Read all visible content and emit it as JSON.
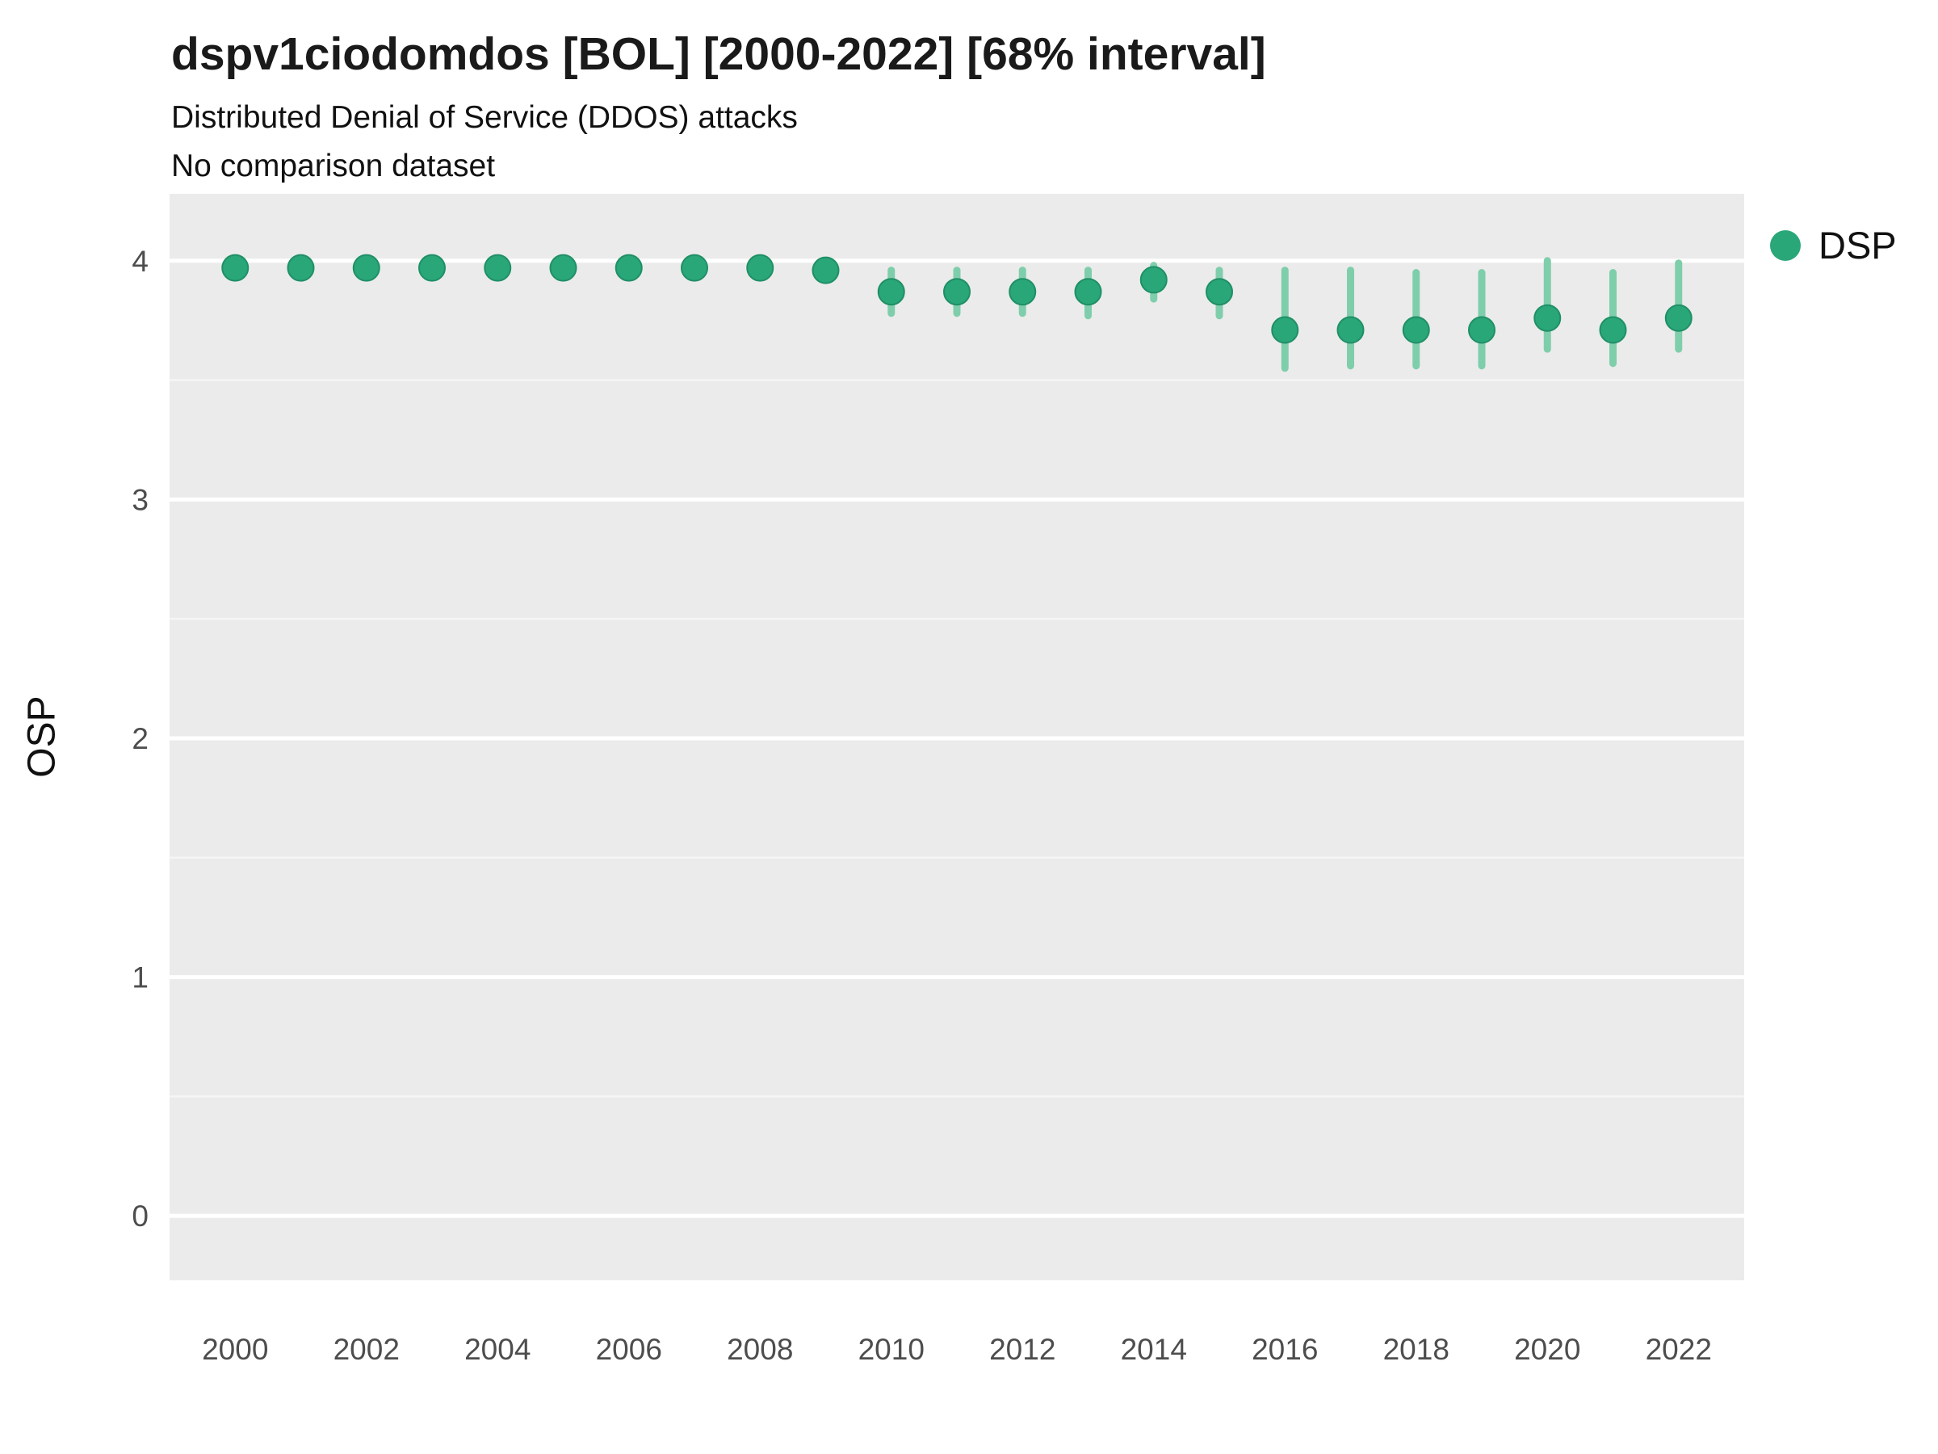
{
  "header": {
    "title": "dspv1ciodomdos [BOL] [2000-2022] [68% interval]",
    "subtitle_line1": "Distributed Denial of Service (DDOS) attacks",
    "subtitle_line2": "No comparison dataset"
  },
  "axes": {
    "y_label": "OSP"
  },
  "legend": {
    "label": "DSP"
  },
  "chart_data": {
    "type": "scatter",
    "title": "dspv1ciodomdos [BOL] [2000-2022] [68% interval]",
    "subtitle": "Distributed Denial of Service (DDOS) attacks",
    "note": "No comparison dataset",
    "xlabel": "",
    "ylabel": "OSP",
    "legend_position": "right",
    "grid": "horizontal-only",
    "x": [
      2000,
      2001,
      2002,
      2003,
      2004,
      2005,
      2006,
      2007,
      2008,
      2009,
      2010,
      2011,
      2012,
      2013,
      2014,
      2015,
      2016,
      2017,
      2018,
      2019,
      2020,
      2021,
      2022
    ],
    "series": [
      {
        "name": "DSP",
        "values": [
          3.97,
          3.97,
          3.97,
          3.97,
          3.97,
          3.97,
          3.97,
          3.97,
          3.97,
          3.96,
          3.87,
          3.87,
          3.87,
          3.87,
          3.92,
          3.87,
          3.71,
          3.71,
          3.71,
          3.71,
          3.76,
          3.71,
          3.76
        ],
        "lower": [
          3.94,
          3.94,
          3.94,
          3.94,
          3.94,
          3.94,
          3.94,
          3.94,
          3.94,
          3.93,
          3.78,
          3.78,
          3.78,
          3.77,
          3.84,
          3.77,
          3.55,
          3.56,
          3.56,
          3.56,
          3.63,
          3.57,
          3.63
        ],
        "upper": [
          3.99,
          3.99,
          3.99,
          3.99,
          3.99,
          3.99,
          3.99,
          3.99,
          3.99,
          3.99,
          3.96,
          3.96,
          3.96,
          3.96,
          3.98,
          3.96,
          3.96,
          3.96,
          3.95,
          3.95,
          4.0,
          3.95,
          3.99
        ],
        "interval": "68%"
      }
    ],
    "x_ticks": [
      "2000",
      "2002",
      "2004",
      "2006",
      "2008",
      "2010",
      "2012",
      "2014",
      "2016",
      "2018",
      "2020",
      "2022"
    ],
    "y_ticks": [
      "0",
      "1",
      "2",
      "3",
      "4"
    ],
    "y_minor_ticks": [
      0.5,
      1.5,
      2.5,
      3.5
    ],
    "xlim": [
      1999,
      2023
    ],
    "ylim": [
      -0.27,
      4.28
    ],
    "colors": {
      "point": "#2aa779",
      "point_edge": "#1f8f66",
      "interval": "#7fceab",
      "panel_bg": "#ebebeb",
      "grid_major": "#ffffff",
      "grid_minor": "#f5f5f5",
      "tick_text": "#4d4d4d"
    }
  }
}
